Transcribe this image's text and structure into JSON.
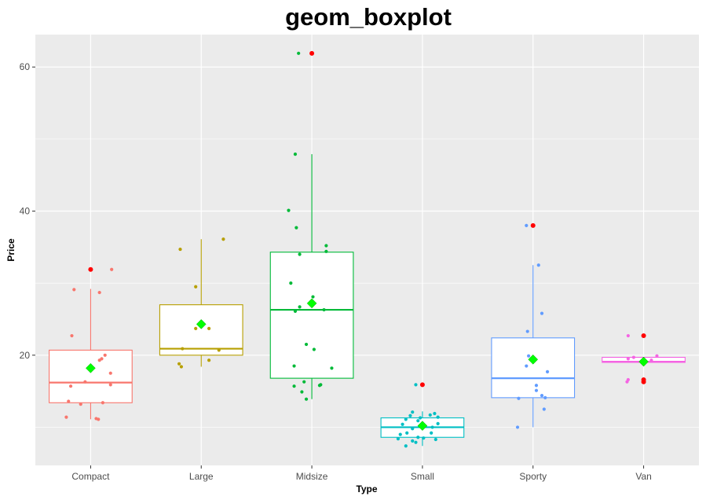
{
  "chart_data": {
    "type": "boxplot",
    "title": "geom_boxplot",
    "xlabel": "Type",
    "ylabel": "Price",
    "ylim": [
      4.7,
      64.5
    ],
    "yticks": [
      20,
      40,
      60
    ],
    "grid": true,
    "legend": "none",
    "mean_color": "#00ff00",
    "outlier_color": "#ff0000",
    "panel_background": "#ebebeb",
    "categories": [
      "Compact",
      "Large",
      "Midsize",
      "Small",
      "Sporty",
      "Van"
    ],
    "colors": [
      "#f8766d",
      "#b79f00",
      "#00ba38",
      "#00bfc4",
      "#619cff",
      "#f564e3"
    ],
    "boxes": [
      {
        "category": "Compact",
        "lower_whisker": 11.1,
        "q1": 13.4,
        "median": 16.2,
        "q3": 20.7,
        "upper_whisker": 29.2,
        "mean": 18.2,
        "outliers": [
          31.9
        ]
      },
      {
        "category": "Large",
        "lower_whisker": 18.4,
        "q1": 20.0,
        "median": 20.9,
        "q3": 27.0,
        "upper_whisker": 36.1,
        "mean": 24.3,
        "outliers": []
      },
      {
        "category": "Midsize",
        "lower_whisker": 13.9,
        "q1": 16.8,
        "median": 26.3,
        "q3": 34.3,
        "upper_whisker": 47.9,
        "mean": 27.2,
        "outliers": [
          61.9
        ]
      },
      {
        "category": "Small",
        "lower_whisker": 7.4,
        "q1": 8.6,
        "median": 10.0,
        "q3": 11.3,
        "upper_whisker": 12.2,
        "mean": 10.2,
        "outliers": [
          15.9
        ]
      },
      {
        "category": "Sporty",
        "lower_whisker": 10.0,
        "q1": 14.1,
        "median": 16.8,
        "q3": 22.4,
        "upper_whisker": 32.5,
        "mean": 19.4,
        "outliers": [
          38.0
        ]
      },
      {
        "category": "Van",
        "lower_whisker": 19.0,
        "q1": 19.0,
        "median": 19.1,
        "q3": 19.7,
        "upper_whisker": 19.7,
        "mean": 19.1,
        "outliers": [
          16.3,
          16.6,
          22.7
        ]
      }
    ],
    "jitter_points": [
      [
        {
          "dx": -0.22,
          "y": 11.4
        },
        {
          "dx": 0.05,
          "y": 11.2
        },
        {
          "dx": 0.07,
          "y": 11.1
        },
        {
          "dx": -0.09,
          "y": 13.2
        },
        {
          "dx": 0.11,
          "y": 13.4
        },
        {
          "dx": -0.2,
          "y": 13.6
        },
        {
          "dx": -0.18,
          "y": 15.7
        },
        {
          "dx": 0.18,
          "y": 15.9
        },
        {
          "dx": -0.05,
          "y": 16.3
        },
        {
          "dx": 0.18,
          "y": 17.5
        },
        {
          "dx": 0.08,
          "y": 19.3
        },
        {
          "dx": 0.1,
          "y": 19.5
        },
        {
          "dx": 0.13,
          "y": 20.0
        },
        {
          "dx": -0.17,
          "y": 22.7
        },
        {
          "dx": 0.08,
          "y": 28.7
        },
        {
          "dx": -0.15,
          "y": 29.1
        },
        {
          "dx": 0.19,
          "y": 31.9
        }
      ],
      [
        {
          "dx": -0.18,
          "y": 18.4
        },
        {
          "dx": -0.2,
          "y": 18.8
        },
        {
          "dx": 0.07,
          "y": 19.3
        },
        {
          "dx": -0.17,
          "y": 20.9
        },
        {
          "dx": 0.16,
          "y": 20.7
        },
        {
          "dx": -0.05,
          "y": 23.7
        },
        {
          "dx": 0.07,
          "y": 23.7
        },
        {
          "dx": -0.05,
          "y": 29.5
        },
        {
          "dx": -0.19,
          "y": 34.7
        },
        {
          "dx": 0.2,
          "y": 36.1
        }
      ],
      [
        {
          "dx": -0.05,
          "y": 13.9
        },
        {
          "dx": -0.09,
          "y": 14.9
        },
        {
          "dx": -0.16,
          "y": 15.7
        },
        {
          "dx": 0.07,
          "y": 15.8
        },
        {
          "dx": 0.08,
          "y": 15.9
        },
        {
          "dx": -0.07,
          "y": 16.3
        },
        {
          "dx": 0.18,
          "y": 18.2
        },
        {
          "dx": -0.16,
          "y": 18.5
        },
        {
          "dx": -0.05,
          "y": 21.5
        },
        {
          "dx": 0.02,
          "y": 20.8
        },
        {
          "dx": 0.11,
          "y": 26.3
        },
        {
          "dx": -0.15,
          "y": 26.1
        },
        {
          "dx": -0.11,
          "y": 26.7
        },
        {
          "dx": -0.19,
          "y": 30.0
        },
        {
          "dx": 0.01,
          "y": 28.1
        },
        {
          "dx": -0.11,
          "y": 34.0
        },
        {
          "dx": 0.13,
          "y": 34.4
        },
        {
          "dx": 0.13,
          "y": 35.2
        },
        {
          "dx": -0.14,
          "y": 37.7
        },
        {
          "dx": -0.21,
          "y": 40.1
        },
        {
          "dx": -0.15,
          "y": 47.9
        },
        {
          "dx": -0.12,
          "y": 61.9
        }
      ],
      [
        {
          "dx": -0.15,
          "y": 7.4
        },
        {
          "dx": -0.06,
          "y": 7.9
        },
        {
          "dx": -0.09,
          "y": 8.1
        },
        {
          "dx": 0.12,
          "y": 8.3
        },
        {
          "dx": -0.22,
          "y": 8.4
        },
        {
          "dx": 0.01,
          "y": 8.5
        },
        {
          "dx": -0.04,
          "y": 8.6
        },
        {
          "dx": -0.2,
          "y": 9.0
        },
        {
          "dx": -0.14,
          "y": 9.2
        },
        {
          "dx": 0.08,
          "y": 9.2
        },
        {
          "dx": -0.09,
          "y": 9.8
        },
        {
          "dx": 0.09,
          "y": 10.0
        },
        {
          "dx": -0.18,
          "y": 10.4
        },
        {
          "dx": 0.14,
          "y": 10.5
        },
        {
          "dx": -0.04,
          "y": 10.9
        },
        {
          "dx": -0.15,
          "y": 11.1
        },
        {
          "dx": -0.02,
          "y": 11.3
        },
        {
          "dx": 0.14,
          "y": 11.4
        },
        {
          "dx": -0.11,
          "y": 11.6
        },
        {
          "dx": 0.07,
          "y": 11.7
        },
        {
          "dx": 0.11,
          "y": 11.9
        },
        {
          "dx": -0.09,
          "y": 12.1
        },
        {
          "dx": -0.06,
          "y": 15.9
        }
      ],
      [
        {
          "dx": -0.14,
          "y": 10.0
        },
        {
          "dx": 0.1,
          "y": 12.5
        },
        {
          "dx": -0.13,
          "y": 14.0
        },
        {
          "dx": 0.11,
          "y": 14.1
        },
        {
          "dx": 0.08,
          "y": 14.4
        },
        {
          "dx": 0.03,
          "y": 15.1
        },
        {
          "dx": 0.03,
          "y": 15.8
        },
        {
          "dx": 0.13,
          "y": 17.7
        },
        {
          "dx": -0.06,
          "y": 18.5
        },
        {
          "dx": -0.04,
          "y": 19.9
        },
        {
          "dx": 0.08,
          "y": 25.8
        },
        {
          "dx": -0.05,
          "y": 23.3
        },
        {
          "dx": 0.05,
          "y": 32.5
        },
        {
          "dx": -0.06,
          "y": 38.0
        }
      ],
      [
        {
          "dx": -0.15,
          "y": 16.3
        },
        {
          "dx": -0.14,
          "y": 16.6
        },
        {
          "dx": -0.14,
          "y": 19.5
        },
        {
          "dx": -0.09,
          "y": 19.7
        },
        {
          "dx": 0.12,
          "y": 19.9
        },
        {
          "dx": 0.07,
          "y": 19.3
        },
        {
          "dx": -0.14,
          "y": 22.7
        },
        {
          "dx": 0.0,
          "y": 16.4
        },
        {
          "dx": 0.0,
          "y": 22.7
        }
      ]
    ]
  }
}
